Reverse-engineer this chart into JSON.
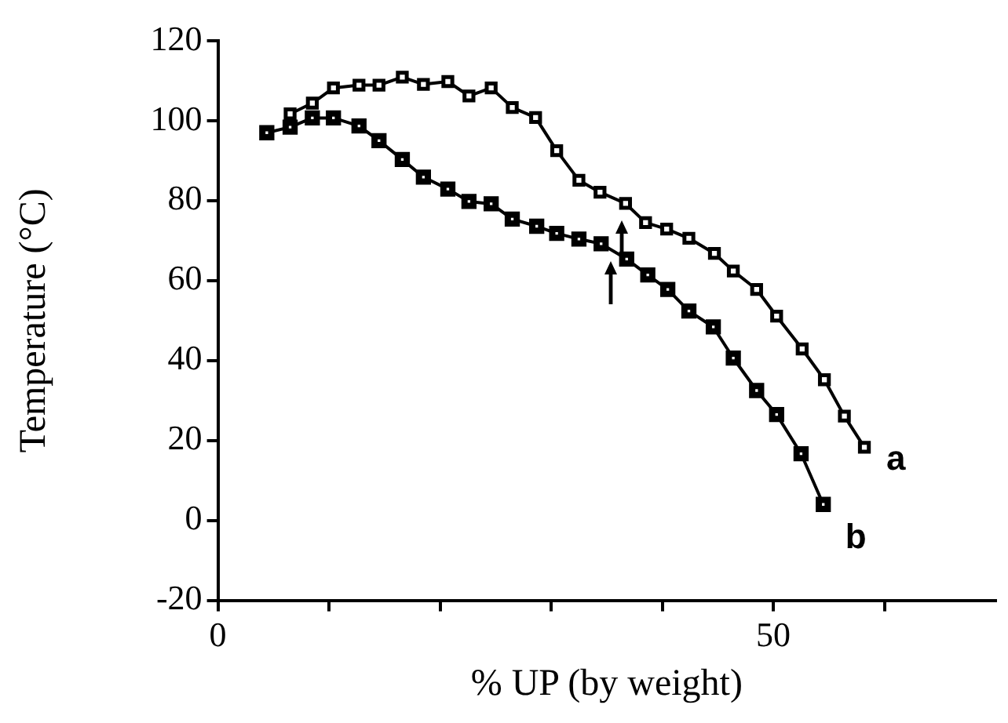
{
  "chart_data": {
    "type": "line",
    "xlabel": "% UP (by weight)",
    "ylabel": "Temperature (°C)",
    "xlim": [
      0,
      70
    ],
    "xticks": [
      0,
      {
        "value": 10,
        "label": null
      },
      {
        "value": 20,
        "label": null
      },
      {
        "value": 30,
        "label": null
      },
      {
        "value": 40,
        "label": null
      },
      50,
      {
        "value": 60,
        "label": null
      }
    ],
    "ylim": [
      -20,
      120
    ],
    "yticks": [
      -20,
      0,
      20,
      40,
      60,
      80,
      100,
      120
    ],
    "grid": false,
    "legend": false,
    "marker": "square",
    "line_style": "solid",
    "series": [
      {
        "name": "a",
        "color": "#000000",
        "x": [
          6.5,
          8.5,
          10.4,
          12.7,
          14.5,
          16.6,
          18.5,
          20.7,
          22.6,
          24.6,
          26.5,
          28.6,
          30.5,
          32.5,
          34.4,
          36.7,
          38.5,
          40.4,
          42.4,
          44.7,
          46.4,
          48.5,
          50.3,
          52.6,
          54.6,
          56.4,
          58.2
        ],
        "values": [
          101.7,
          104.4,
          108.2,
          108.9,
          108.9,
          110.9,
          109.1,
          109.8,
          106.2,
          108.2,
          103.3,
          100.8,
          92.5,
          85.1,
          82.1,
          79.3,
          74.5,
          72.9,
          70.6,
          66.8,
          62.4,
          57.8,
          51.1,
          42.9,
          35.2,
          26.1,
          18.3
        ]
      },
      {
        "name": "b",
        "color": "#000000",
        "x": [
          4.4,
          6.5,
          8.5,
          10.4,
          12.7,
          14.5,
          16.6,
          18.5,
          20.7,
          22.6,
          24.6,
          26.5,
          28.7,
          30.5,
          32.5,
          34.5,
          36.8,
          38.7,
          40.5,
          42.4,
          44.6,
          46.4,
          48.5,
          50.3,
          52.5,
          54.5
        ],
        "values": [
          97.0,
          98.4,
          100.7,
          100.7,
          98.7,
          95.0,
          90.3,
          85.9,
          82.9,
          79.8,
          79.2,
          75.4,
          73.6,
          71.8,
          70.4,
          69.2,
          65.4,
          61.4,
          57.8,
          52.4,
          48.4,
          40.6,
          32.5,
          26.5,
          16.7,
          4.0
        ]
      }
    ]
  }
}
